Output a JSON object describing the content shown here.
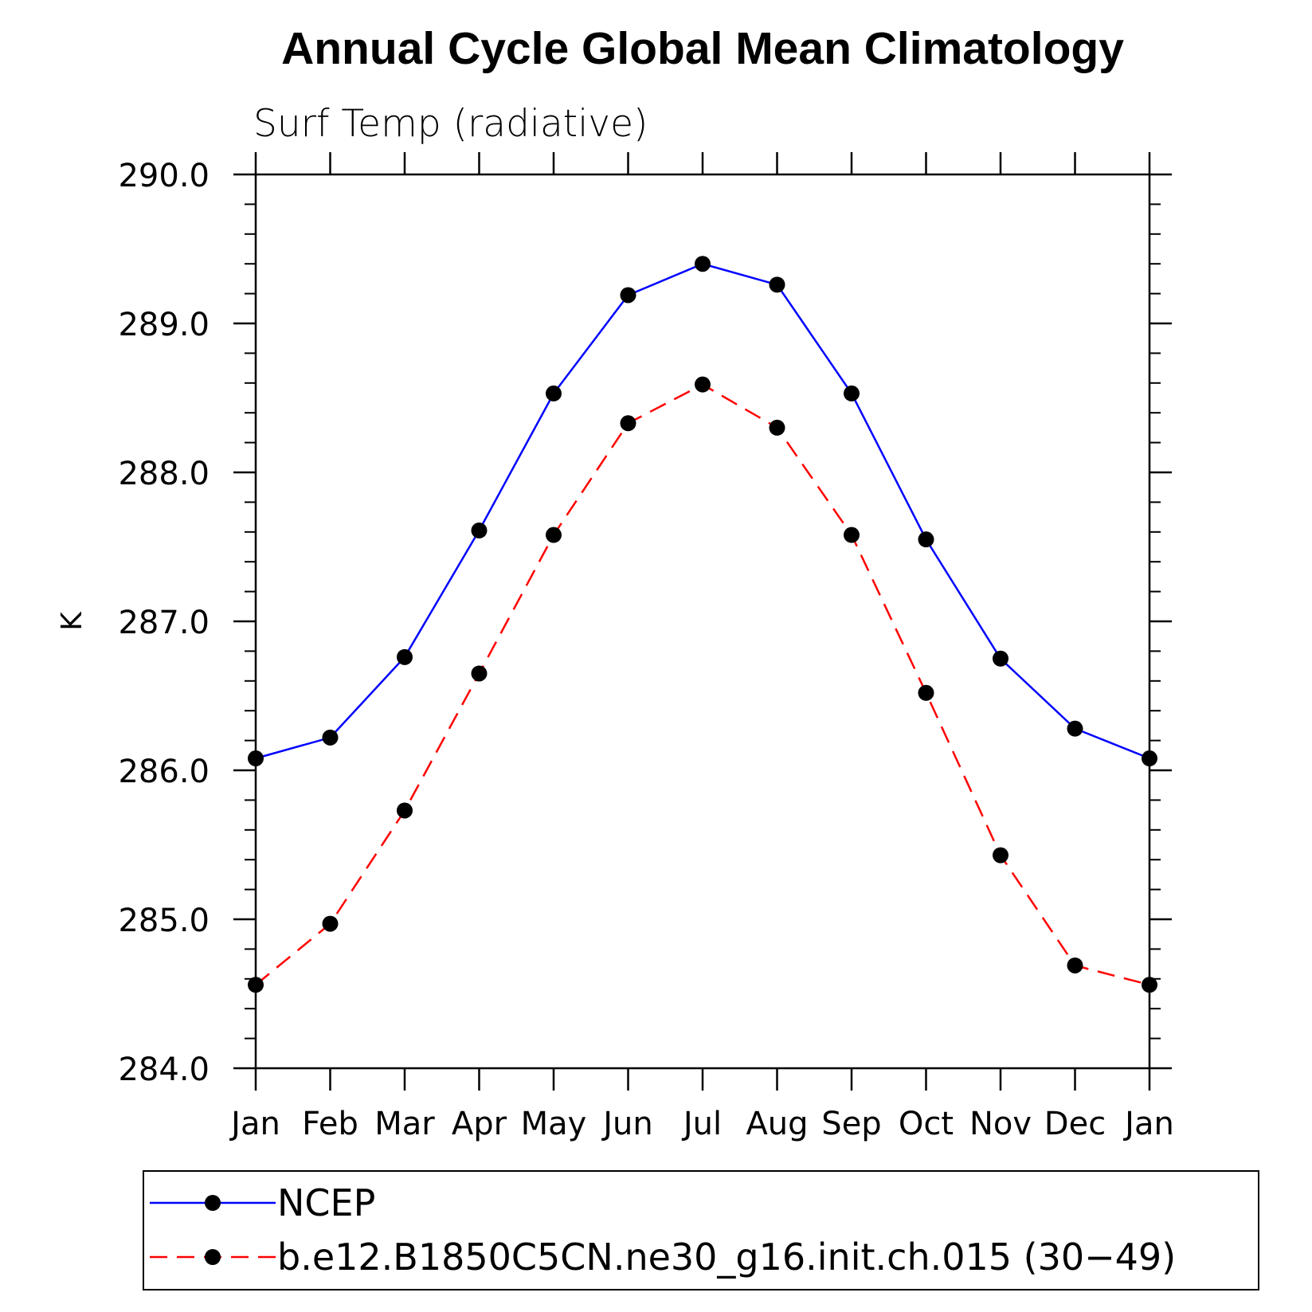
{
  "chart_data": {
    "type": "line",
    "title": "Annual Cycle Global Mean Climatology",
    "subtitle": "Surf Temp (radiative)",
    "xlabel": "",
    "ylabel": "K",
    "categories": [
      "Jan",
      "Feb",
      "Mar",
      "Apr",
      "May",
      "Jun",
      "Jul",
      "Aug",
      "Sep",
      "Oct",
      "Nov",
      "Dec",
      "Jan"
    ],
    "ylim": [
      284.0,
      290.0
    ],
    "yticks": [
      "284.0",
      "285.0",
      "286.0",
      "287.0",
      "288.0",
      "289.0",
      "290.0"
    ],
    "yminor_step": 0.2,
    "grid": false,
    "legend_position": "bottom",
    "series": [
      {
        "name": "NCEP",
        "color": "#0000ff",
        "dash": "solid",
        "values": [
          286.08,
          286.22,
          286.76,
          287.61,
          288.53,
          289.19,
          289.4,
          289.26,
          288.53,
          287.55,
          286.75,
          286.28,
          286.08
        ]
      },
      {
        "name": "b.e12.B1850C5CN.ne30_g16.init.ch.015 (30−49)",
        "color": "#ff0000",
        "dash": "dashed",
        "values": [
          284.56,
          284.97,
          285.73,
          286.65,
          287.58,
          288.33,
          288.59,
          288.3,
          287.58,
          286.52,
          285.43,
          284.69,
          284.56
        ]
      }
    ]
  }
}
